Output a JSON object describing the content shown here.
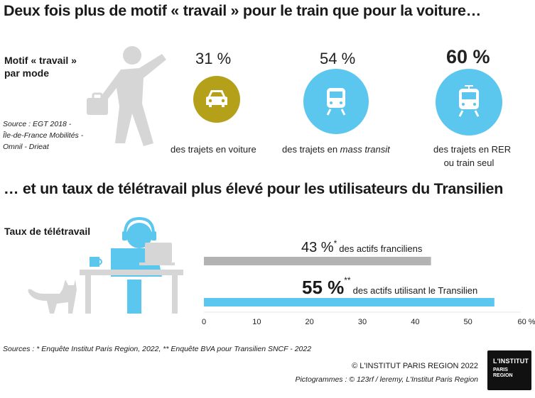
{
  "titles": {
    "main": "Deux fois plus de motif « travail » pour le train que pour la voiture…",
    "second": "… et un taux de télétravail plus élevé pour les utilisateurs du Transilien"
  },
  "motif": {
    "label_line1": "Motif « travail »",
    "label_line2": "par mode",
    "source_line1": "Source : EGT 2018 -",
    "source_line2": "Île-de-France Mobilités -",
    "source_line3": "Omnil - Drieat"
  },
  "modes": [
    {
      "pct": "31 %",
      "desc_line1": "des trajets en voiture",
      "desc_line2": "",
      "icon": "car-icon",
      "color": "#b5a01a"
    },
    {
      "pct": "54 %",
      "desc_line1_prefix": "des trajets en ",
      "desc_line1_em": "mass transit",
      "icon": "train-icon",
      "color": "#5bc6ee"
    },
    {
      "pct": "60 %",
      "desc_line1": "des trajets en RER",
      "desc_line2": "ou train seul",
      "icon": "train-icon",
      "color": "#5bc6ee"
    }
  ],
  "teletravail": {
    "label": "Taux de télétravail"
  },
  "chart_data": {
    "type": "bar",
    "orientation": "horizontal",
    "categories": [
      "des actifs franciliens",
      "des actifs utilisant le Transilien"
    ],
    "values": [
      43,
      55
    ],
    "value_labels": [
      "43 %",
      "55 %"
    ],
    "markers": [
      "*",
      "**"
    ],
    "colors": [
      "#b3b3b3",
      "#5bc6ee"
    ],
    "xlim": [
      0,
      60
    ],
    "xticks": [
      "0",
      "10",
      "20",
      "30",
      "40",
      "50",
      "60 %"
    ],
    "grid": false
  },
  "footer": {
    "sources": "Sources : * Enquête Institut Paris Region, 2022, ** Enquête BVA pour Transilien SNCF - 2022",
    "copyright": "© L'INSTITUT PARIS REGION 2022",
    "pictogrammes": "Pictogrammes :  © 123rf / leremy, L'Institut Paris Region",
    "logo_line1": "L'INSTITUT",
    "logo_line2": "PARIS",
    "logo_line3": "REGION"
  }
}
